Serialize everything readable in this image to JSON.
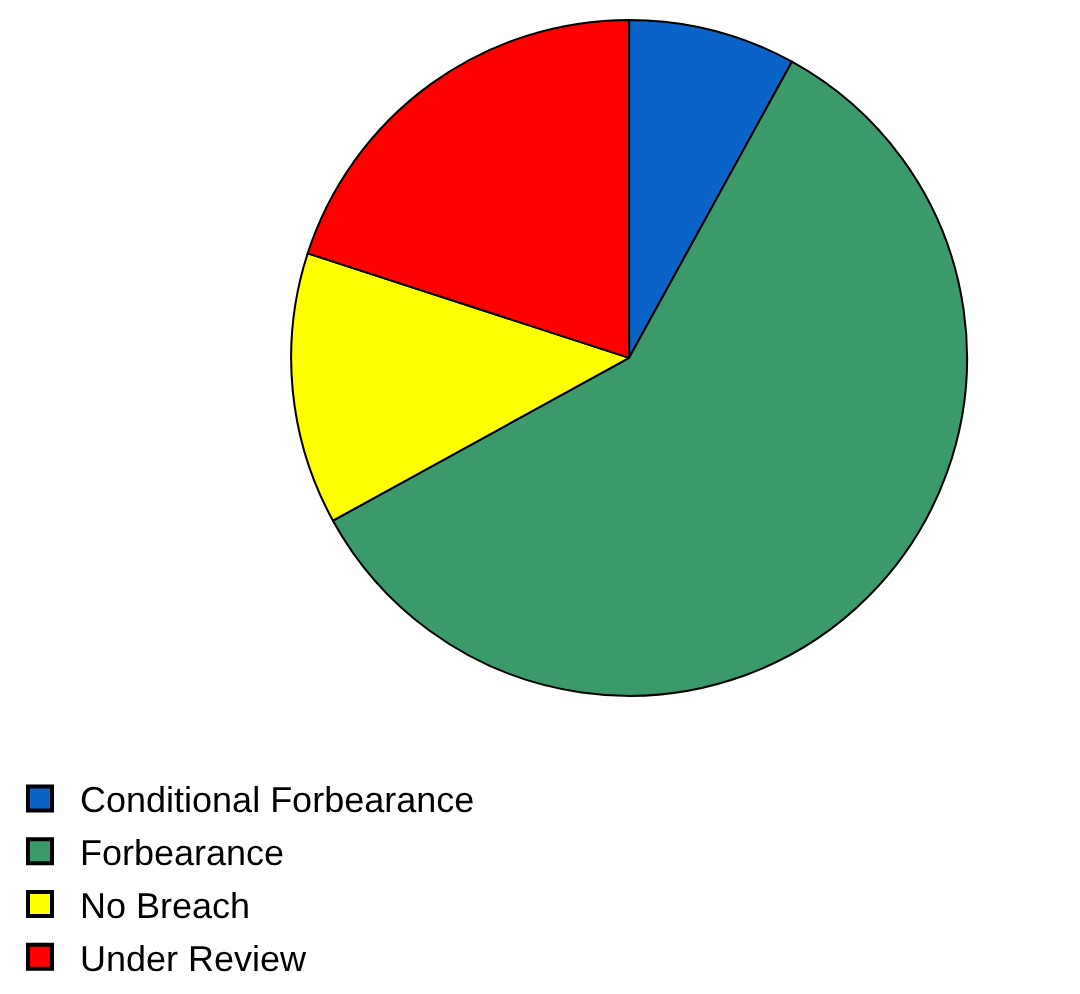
{
  "chart_data": {
    "type": "pie",
    "categories": [
      "Conditional Forbearance",
      "Forbearance",
      "No Breach",
      "Under Review"
    ],
    "values": [
      8,
      59,
      13,
      20
    ],
    "colors": [
      "#0a64c8",
      "#3a9a6a",
      "#ffff00",
      "#ff0000"
    ],
    "legend": "bottom"
  }
}
